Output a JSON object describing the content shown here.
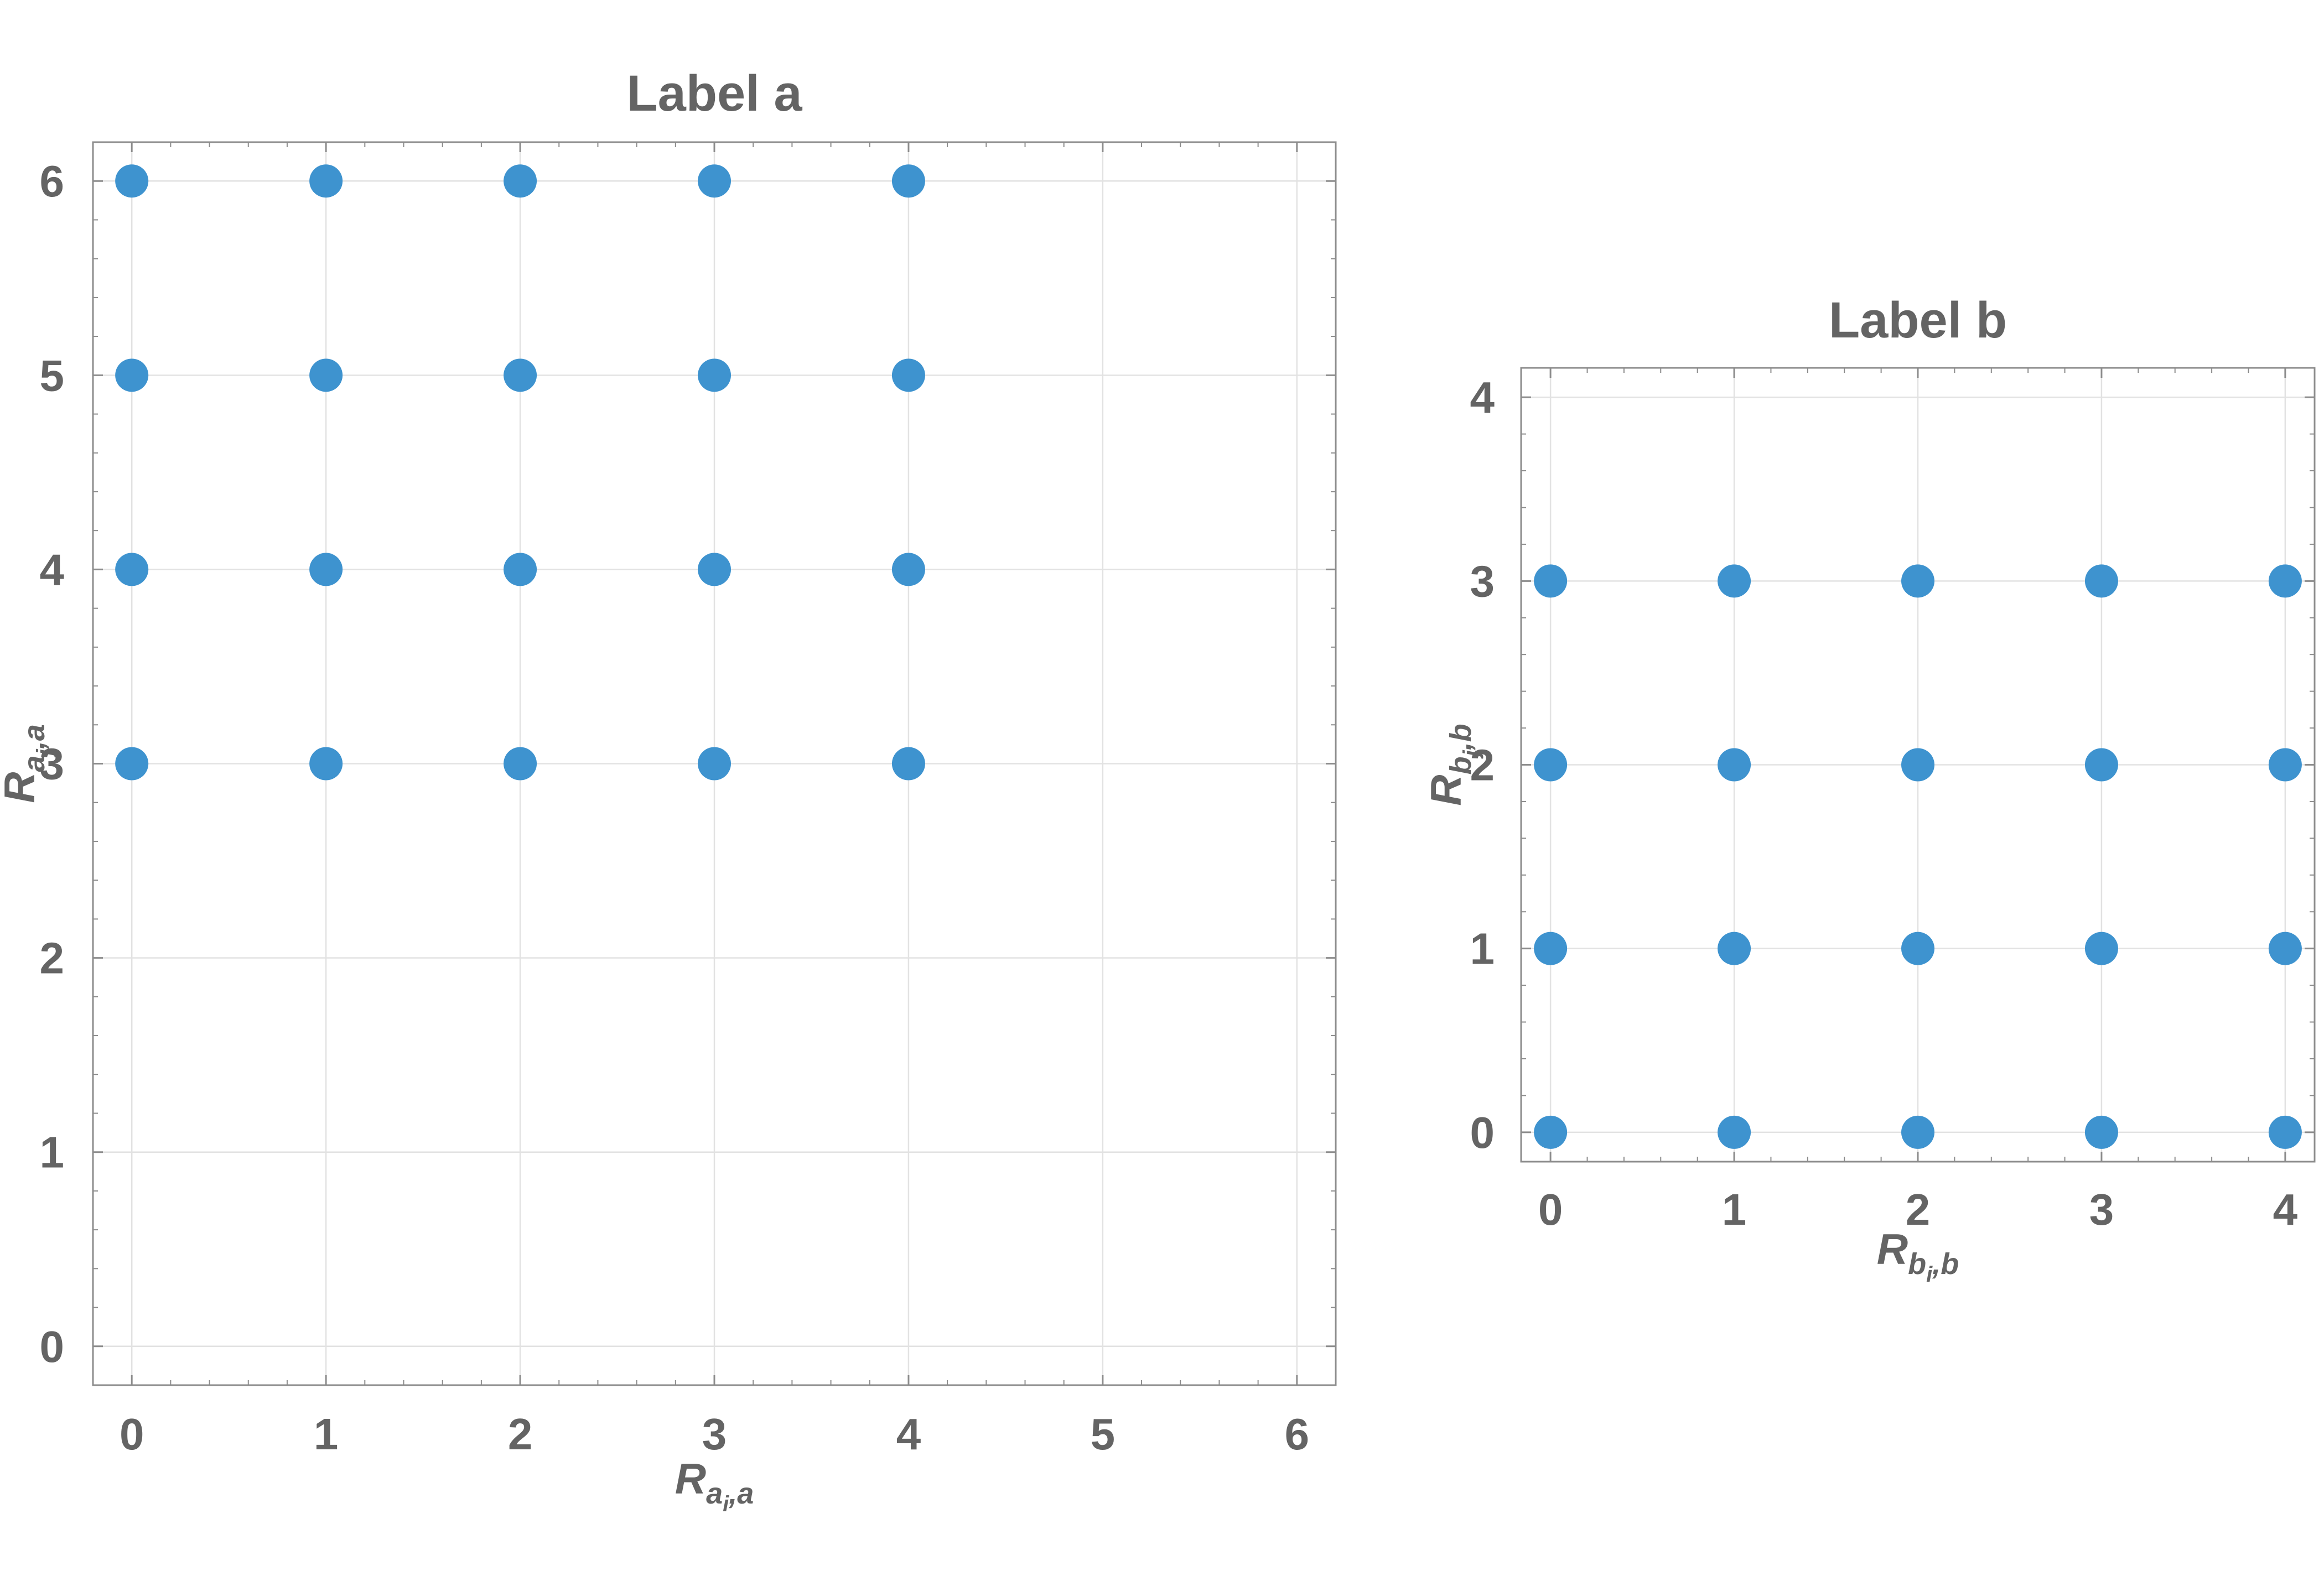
{
  "chart_data": [
    {
      "type": "scatter",
      "title": "Label a",
      "xlabel": {
        "main": "R",
        "sub": "a",
        "subsub": "i",
        "tail": ",a"
      },
      "ylabel": {
        "main": "R",
        "sub": "a",
        "subsub": "j",
        "tail": ",a"
      },
      "xlim": [
        -0.2,
        6.2
      ],
      "ylim": [
        -0.2,
        6.2
      ],
      "xticks": [
        0,
        1,
        2,
        3,
        4,
        5,
        6
      ],
      "yticks": [
        0,
        1,
        2,
        3,
        4,
        5,
        6
      ],
      "grid": true,
      "marker_color": "#3e93cf",
      "points": [
        [
          0,
          3
        ],
        [
          1,
          3
        ],
        [
          2,
          3
        ],
        [
          3,
          3
        ],
        [
          4,
          3
        ],
        [
          0,
          4
        ],
        [
          1,
          4
        ],
        [
          2,
          4
        ],
        [
          3,
          4
        ],
        [
          4,
          4
        ],
        [
          0,
          5
        ],
        [
          1,
          5
        ],
        [
          2,
          5
        ],
        [
          3,
          5
        ],
        [
          4,
          5
        ],
        [
          0,
          6
        ],
        [
          1,
          6
        ],
        [
          2,
          6
        ],
        [
          3,
          6
        ],
        [
          4,
          6
        ]
      ]
    },
    {
      "type": "scatter",
      "title": "Label b",
      "xlabel": {
        "main": "R",
        "sub": "b",
        "subsub": "i",
        "tail": ",b"
      },
      "ylabel": {
        "main": "R",
        "sub": "b",
        "subsub": "j",
        "tail": ",b"
      },
      "xlim": [
        -0.16,
        4.16
      ],
      "ylim": [
        -0.16,
        4.16
      ],
      "xticks": [
        0,
        1,
        2,
        3,
        4
      ],
      "yticks": [
        0,
        1,
        2,
        3,
        4
      ],
      "grid": true,
      "marker_color": "#3e93cf",
      "points": [
        [
          0,
          0
        ],
        [
          1,
          0
        ],
        [
          2,
          0
        ],
        [
          3,
          0
        ],
        [
          4,
          0
        ],
        [
          0,
          1
        ],
        [
          1,
          1
        ],
        [
          2,
          1
        ],
        [
          3,
          1
        ],
        [
          4,
          1
        ],
        [
          0,
          2
        ],
        [
          1,
          2
        ],
        [
          2,
          2
        ],
        [
          3,
          2
        ],
        [
          4,
          2
        ],
        [
          0,
          3
        ],
        [
          1,
          3
        ],
        [
          2,
          3
        ],
        [
          3,
          3
        ],
        [
          4,
          3
        ]
      ]
    }
  ]
}
